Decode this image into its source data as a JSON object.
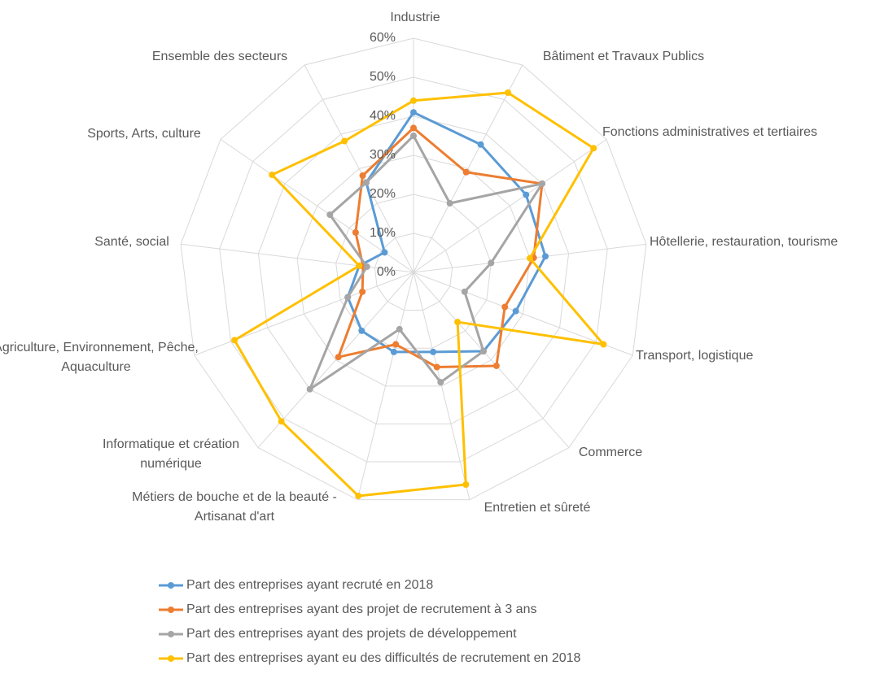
{
  "chart_data": {
    "type": "radar",
    "categories": [
      "Industrie",
      "Bâtiment et Travaux Publics",
      "Fonctions administratives et tertiaires",
      "Hôtellerie, restauration, tourisme",
      "Transport, logistique",
      "Commerce",
      "Entretien et sûreté",
      "Métiers de bouche et de la beauté - Artisanat d'art",
      "Informatique et création numérique",
      "Agriculture, Environnement, Pêche, Aquaculture",
      "Santé, social",
      "Sports, Arts, culture",
      "Ensemble des secteurs"
    ],
    "series": [
      {
        "name": "Part des entreprises ayant recruté en 2018",
        "color": "#5b9bd5",
        "values": [
          41,
          37,
          35,
          34,
          28,
          27,
          21,
          21,
          20,
          18,
          14,
          9,
          26
        ]
      },
      {
        "name": "Part des entreprises ayant des projet de recrutement à 3 ans",
        "color": "#ed7d31",
        "values": [
          37,
          29,
          40,
          31,
          25,
          32,
          25,
          19,
          29,
          14,
          13,
          18,
          28
        ]
      },
      {
        "name": "Part des entreprises ayant des projets de développement",
        "color": "#a5a5a5",
        "values": [
          35,
          20,
          40,
          20,
          14,
          27,
          29,
          15,
          40,
          18,
          12,
          26,
          26
        ]
      },
      {
        "name": "Part des entreprises ayant eu des difficultés de recrutement en 2018",
        "color": "#ffc000",
        "values": [
          44,
          52,
          56,
          30,
          52,
          17,
          56,
          59,
          51,
          49,
          14,
          44,
          38
        ]
      }
    ],
    "ylim": [
      0,
      60
    ],
    "yticks": [
      {
        "value": 0,
        "label": "0%"
      },
      {
        "value": 10,
        "label": "10%"
      },
      {
        "value": 20,
        "label": "20%"
      },
      {
        "value": 30,
        "label": "30%"
      },
      {
        "value": 40,
        "label": "40%"
      },
      {
        "value": 50,
        "label": "50%"
      },
      {
        "value": 60,
        "label": "60%"
      }
    ],
    "grid": true,
    "legend": "bottom"
  }
}
